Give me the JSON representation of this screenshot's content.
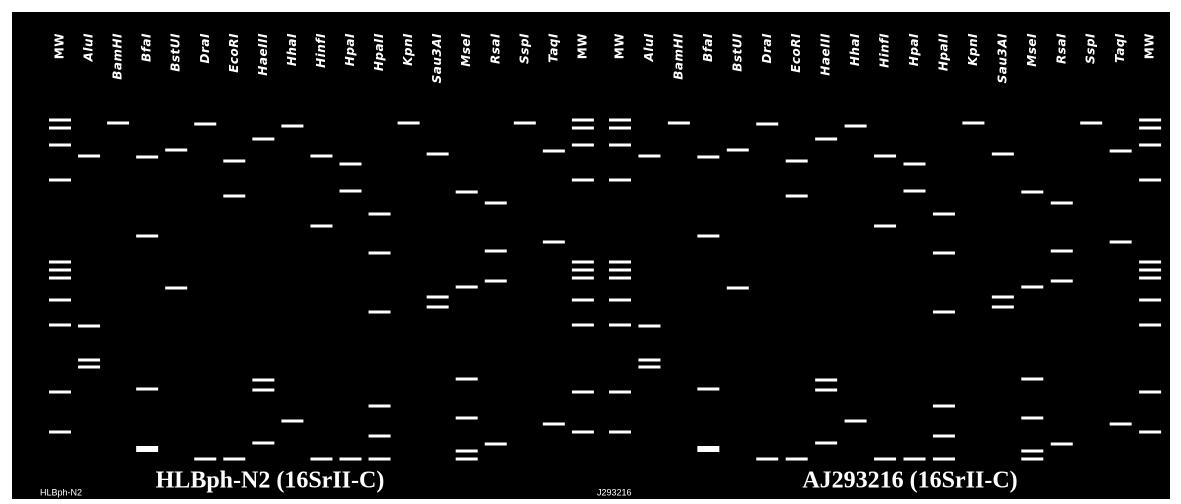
{
  "panels": [
    {
      "tag": "HLBph-N2",
      "title": "HLBph-N2 (16SrII-C)",
      "lanes": [
        "MW",
        "AluI",
        "BamHI",
        "BfaI",
        "BstUI",
        "DraI",
        "EcoRI",
        "HaeIII",
        "HhaI",
        "HinfI",
        "HpaI",
        "HpaII",
        "KpnI",
        "Sau3AI",
        "MseI",
        "RsaI",
        "SspI",
        "TaqI",
        "MW"
      ]
    },
    {
      "tag": "J293216",
      "title": "AJ293216 (16SrII-C)",
      "lanes": [
        "MW",
        "AluI",
        "BamHI",
        "BfaI",
        "BstUI",
        "DraI",
        "EcoRI",
        "HaeIII",
        "HhaI",
        "HinfI",
        "HpaI",
        "HpaII",
        "KpnI",
        "Sau3AI",
        "MseI",
        "RsaI",
        "SspI",
        "TaqI",
        "MW"
      ]
    }
  ]
}
